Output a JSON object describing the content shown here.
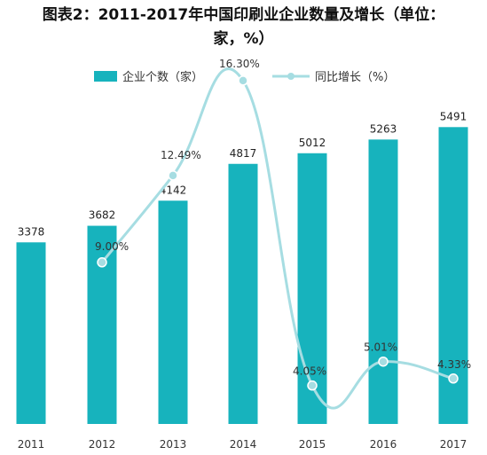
{
  "title": {
    "line1": "图表2：2011-2017年中国印刷业企业数量及增长（单位：",
    "line2": "家，%）"
  },
  "legend": {
    "bars": "企业个数（家）",
    "line": "同比增长（%）"
  },
  "colors": {
    "bar": "#17b3bd",
    "line": "#a6dde2",
    "marker": "#a6dde2"
  },
  "chart_data": {
    "type": "bar",
    "categories": [
      "2011",
      "2012",
      "2013",
      "2014",
      "2015",
      "2016",
      "2017"
    ],
    "series": [
      {
        "name": "企业个数（家）",
        "type": "bar",
        "values": [
          3378,
          3682,
          4142,
          4817,
          5012,
          5263,
          5491
        ]
      },
      {
        "name": "同比增长（%）",
        "type": "line",
        "axis": "secondary",
        "values": [
          null,
          9.0,
          12.49,
          16.3,
          4.05,
          5.01,
          4.33
        ],
        "labels": [
          "",
          "9.00%",
          "12.49%",
          "16.30%",
          "4.05%",
          "5.01%",
          "4.33%"
        ]
      }
    ],
    "ylim": [
      0,
      6000
    ],
    "y2lim": [
      0,
      18
    ],
    "grid": false,
    "legend_position": "top"
  }
}
